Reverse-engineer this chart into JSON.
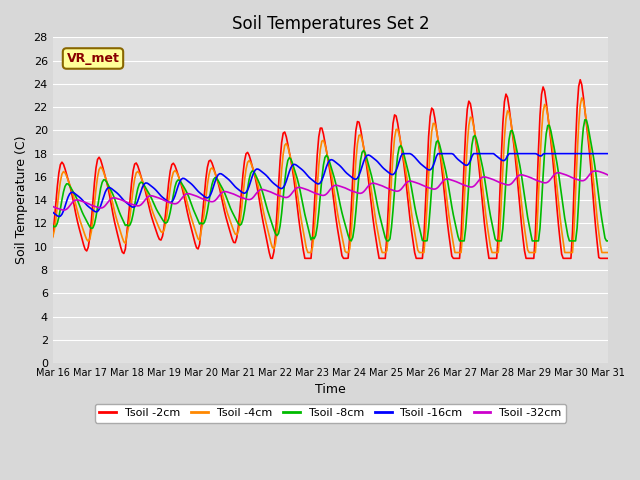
{
  "title": "Soil Temperatures Set 2",
  "xlabel": "Time",
  "ylabel": "Soil Temperature (C)",
  "ylim": [
    0,
    28
  ],
  "yticks": [
    0,
    2,
    4,
    6,
    8,
    10,
    12,
    14,
    16,
    18,
    20,
    22,
    24,
    26,
    28
  ],
  "x_labels": [
    "Mar 16",
    "Mar 17",
    "Mar 18",
    "Mar 19",
    "Mar 20",
    "Mar 21",
    "Mar 22",
    "Mar 23",
    "Mar 24",
    "Mar 25",
    "Mar 26",
    "Mar 27",
    "Mar 28",
    "Mar 29",
    "Mar 30",
    "Mar 31"
  ],
  "series_colors": [
    "#ff0000",
    "#ff8800",
    "#00bb00",
    "#0000ff",
    "#cc00cc"
  ],
  "series_labels": [
    "Tsoil -2cm",
    "Tsoil -4cm",
    "Tsoil -8cm",
    "Tsoil -16cm",
    "Tsoil -32cm"
  ],
  "legend_box_color": "#ffff99",
  "legend_box_edge": "#886600",
  "annotation_text": "VR_met",
  "annotation_color": "#880000",
  "fig_bg_color": "#d8d8d8",
  "plot_bg": "#e0e0e0",
  "grid_color": "#ffffff",
  "line_width": 1.2,
  "font_size_title": 12,
  "font_size_axis": 9,
  "font_size_ticks": 8,
  "font_size_legend": 8
}
